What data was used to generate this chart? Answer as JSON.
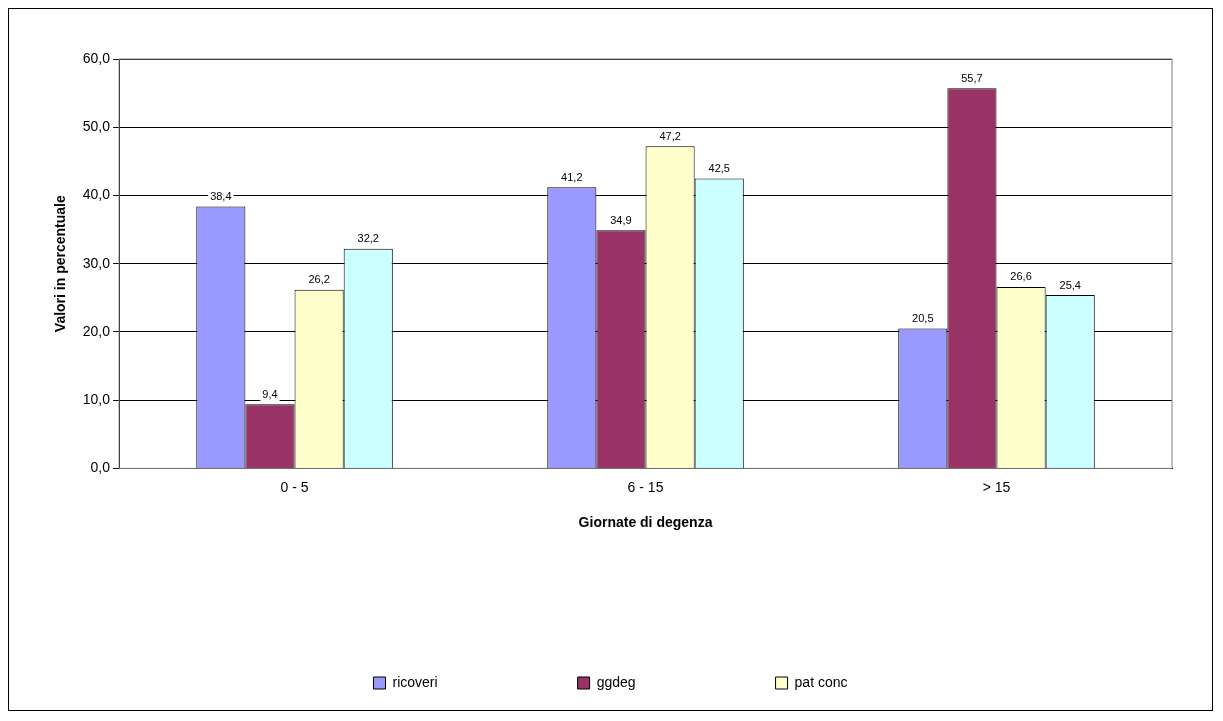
{
  "chart_data": {
    "type": "bar",
    "xlabel": "Giornate di degenza",
    "ylabel": "Valori in percentuale",
    "categories": [
      "0 - 5",
      "6 - 15",
      "> 15"
    ],
    "series": [
      {
        "name": "ricoveri",
        "color": "#9999ff",
        "values": [
          38.4,
          41.2,
          20.5
        ],
        "value_labels": [
          "38,4",
          "41,2",
          "20,5"
        ]
      },
      {
        "name": "ggdeg",
        "color": "#993366",
        "values": [
          9.4,
          34.9,
          55.7
        ],
        "value_labels": [
          "9,4",
          "34,9",
          "55,7"
        ]
      },
      {
        "name": "pat conc",
        "color": "#ffffcc",
        "values": [
          26.2,
          47.2,
          26.6
        ],
        "value_labels": [
          "26,2",
          "47,2",
          "26,6"
        ]
      },
      {
        "color": "#ccffff",
        "values": [
          32.2,
          42.5,
          25.4
        ],
        "value_labels": [
          "32,2",
          "42,5",
          "25,4"
        ]
      }
    ],
    "ylim": [
      0,
      60
    ],
    "yticks": [
      {
        "value": 0,
        "label": "0,0"
      },
      {
        "value": 10,
        "label": "10,0"
      },
      {
        "value": 20,
        "label": "20,0"
      },
      {
        "value": 30,
        "label": "30,0"
      },
      {
        "value": 40,
        "label": "40,0"
      },
      {
        "value": 50,
        "label": "50,0"
      },
      {
        "value": 60,
        "label": "60,0"
      }
    ],
    "grid": "y",
    "legend": "bottom"
  }
}
